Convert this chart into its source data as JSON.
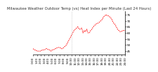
{
  "title": "Milwaukee Weather Outdoor Temp (vs) Heat Index per Minute (Last 24 Hours)",
  "bg_color": "#ffffff",
  "line_color": "#ff0000",
  "ylim": [
    42,
    78
  ],
  "xlim": [
    0,
    144
  ],
  "y_ticks": [
    45,
    50,
    55,
    60,
    65,
    70,
    75
  ],
  "y_tick_labels": [
    "45",
    "50",
    "55",
    "60",
    "65",
    "70",
    "75"
  ],
  "vline_x": 60,
  "title_fontsize": 3.8,
  "tick_fontsize": 3.0,
  "data_x": [
    0,
    2,
    4,
    6,
    8,
    10,
    12,
    14,
    16,
    18,
    20,
    22,
    24,
    26,
    28,
    30,
    32,
    34,
    36,
    38,
    40,
    42,
    44,
    46,
    48,
    50,
    52,
    54,
    56,
    58,
    60,
    62,
    64,
    66,
    68,
    70,
    72,
    74,
    76,
    78,
    80,
    82,
    84,
    86,
    88,
    90,
    92,
    94,
    96,
    98,
    100,
    102,
    104,
    106,
    108,
    110,
    112,
    114,
    116,
    118,
    120,
    122,
    124,
    126,
    128,
    130,
    132,
    134,
    136,
    138,
    140,
    142,
    144
  ],
  "data_y": [
    47,
    46,
    46,
    45,
    45,
    45,
    45,
    46,
    46,
    46,
    47,
    47,
    46,
    46,
    45,
    46,
    46,
    47,
    47,
    48,
    48,
    48,
    47,
    47,
    48,
    49,
    50,
    52,
    54,
    56,
    58,
    60,
    62,
    63,
    64,
    65,
    63,
    63,
    64,
    60,
    62,
    61,
    63,
    60,
    60,
    62,
    63,
    65,
    66,
    67,
    68,
    68,
    69,
    70,
    71,
    73,
    74,
    75,
    74,
    74,
    73,
    72,
    70,
    68,
    67,
    65,
    63,
    62,
    61,
    61,
    62,
    62,
    62
  ]
}
